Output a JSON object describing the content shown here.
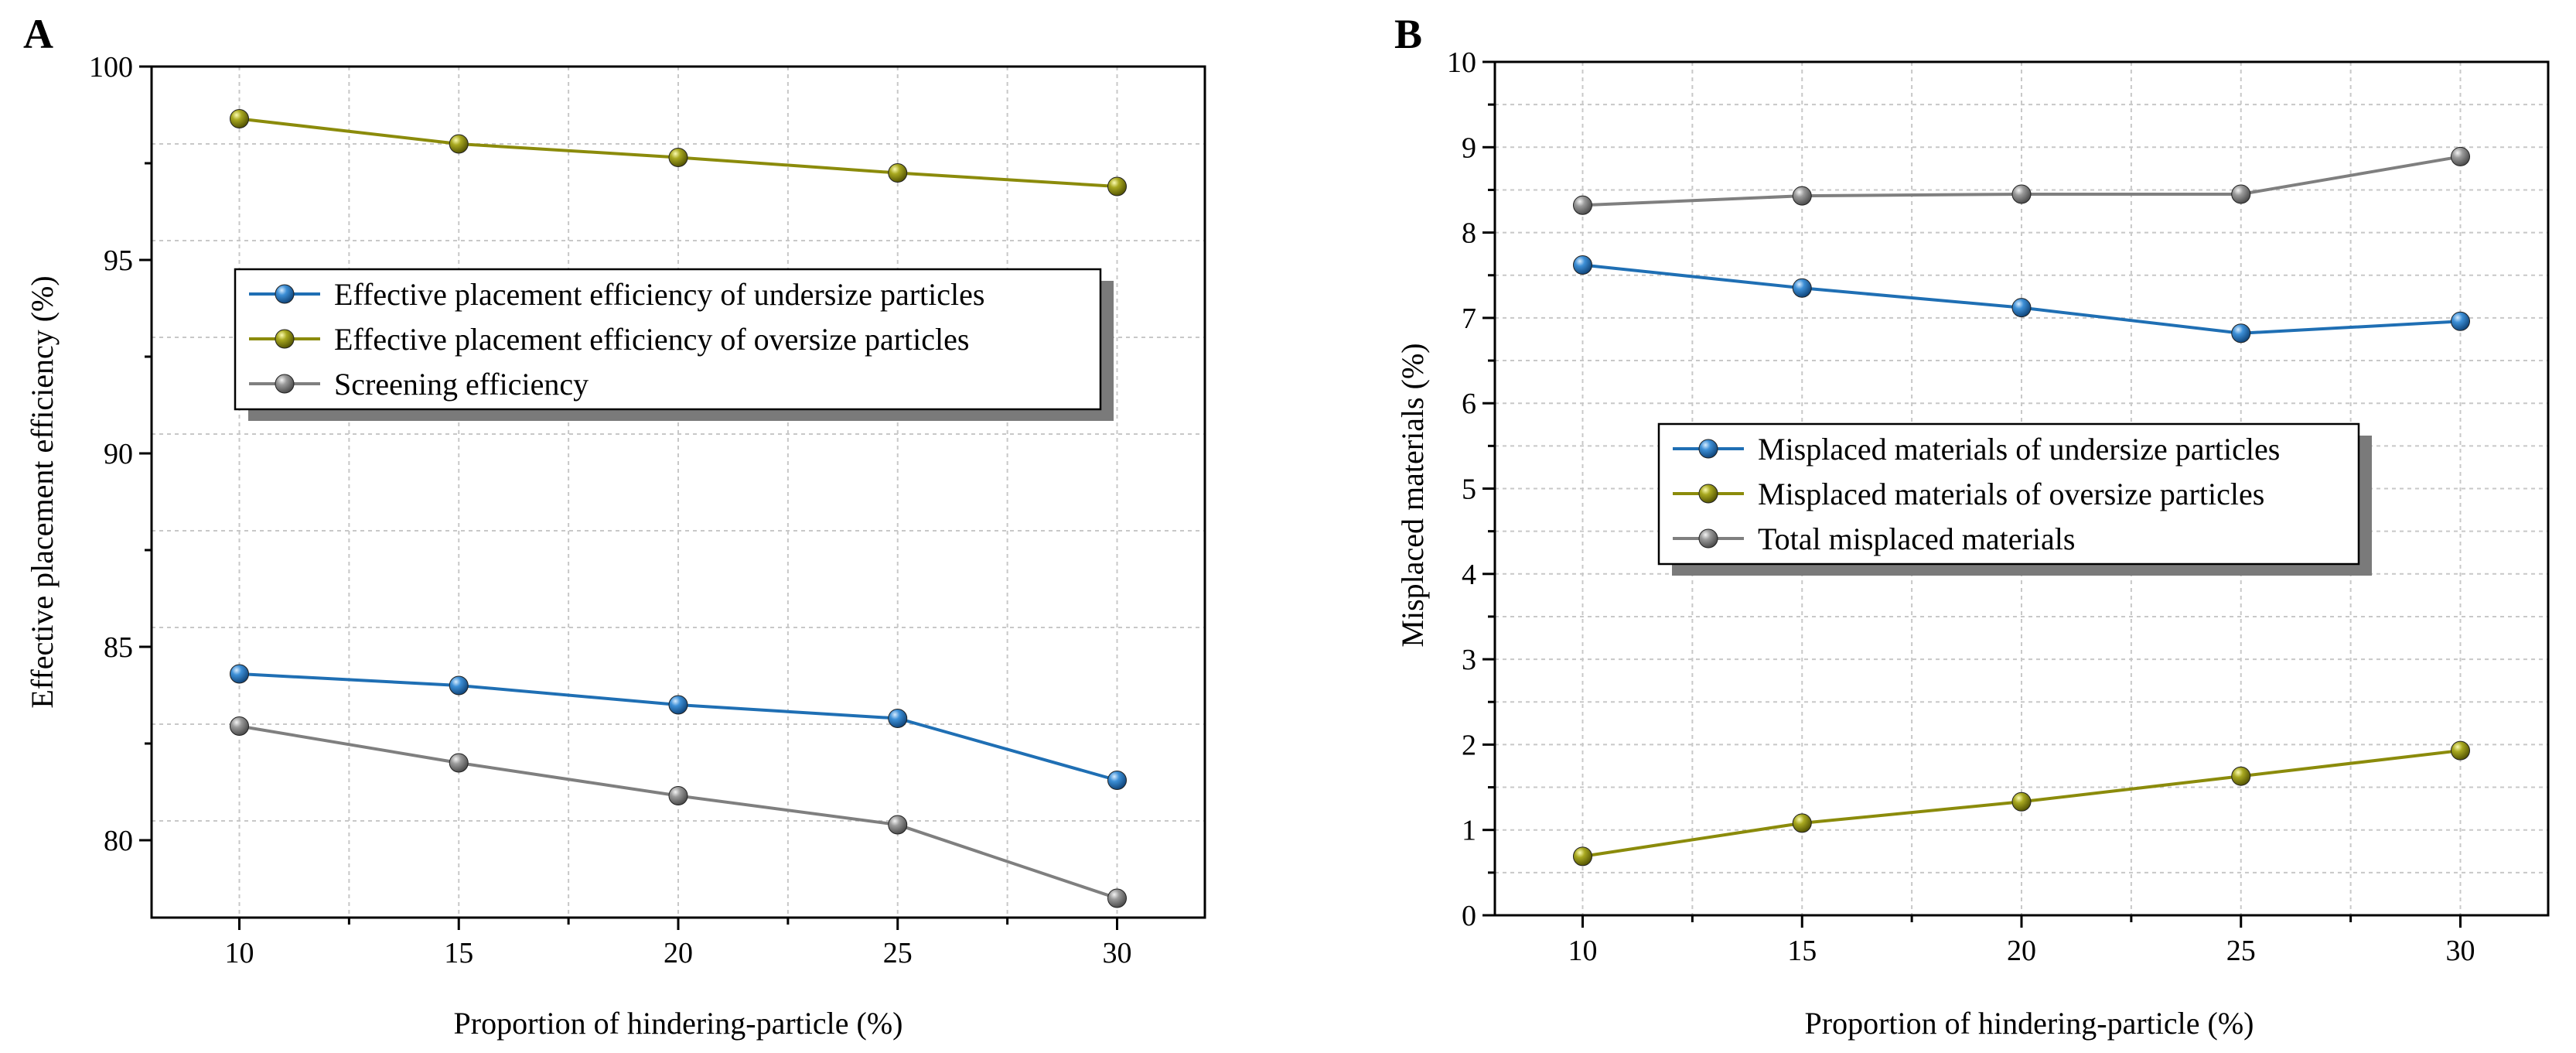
{
  "chart_data": [
    {
      "type": "line",
      "panel": "A",
      "xlabel": "Proportion of hindering-particle (%)",
      "ylabel": "Effective placement efficiency (%)",
      "xlim": [
        8,
        32
      ],
      "ylim": [
        78,
        100
      ],
      "xticks": [
        10,
        15,
        20,
        25,
        30
      ],
      "yticks": [
        80,
        85,
        90,
        95,
        100
      ],
      "grid": true,
      "legend_position": "upper-center",
      "x": [
        10,
        15,
        20,
        25,
        30
      ],
      "series": [
        {
          "name": "Effective placement efficiency of undersize particles",
          "color": "#1f6fb4",
          "values": [
            84.3,
            84.0,
            83.5,
            83.15,
            81.55
          ]
        },
        {
          "name": "Effective placement efficiency of oversize particles",
          "color": "#8b8b0b",
          "values": [
            98.65,
            98.0,
            97.65,
            97.25,
            96.9
          ]
        },
        {
          "name": "Screening efficiency",
          "color": "#7f7f7f",
          "values": [
            82.95,
            82.0,
            81.15,
            80.4,
            78.5
          ]
        }
      ]
    },
    {
      "type": "line",
      "panel": "B",
      "xlabel": "Proportion of hindering-particle (%)",
      "ylabel": "Misplaced materials (%)",
      "xlim": [
        8,
        32
      ],
      "ylim": [
        0,
        10
      ],
      "xticks": [
        10,
        15,
        20,
        25,
        30
      ],
      "yticks": [
        0,
        1,
        2,
        3,
        4,
        5,
        6,
        7,
        8,
        9,
        10
      ],
      "grid": true,
      "legend_position": "center",
      "x": [
        10,
        15,
        20,
        25,
        30
      ],
      "series": [
        {
          "name": "Misplaced materials of undersize particles",
          "color": "#1f6fb4",
          "values": [
            7.62,
            7.35,
            7.12,
            6.82,
            6.96
          ]
        },
        {
          "name": "Misplaced materials of oversize particles",
          "color": "#8b8b0b",
          "values": [
            0.69,
            1.08,
            1.33,
            1.63,
            1.93
          ]
        },
        {
          "name": "Total misplaced materials",
          "color": "#7f7f7f",
          "values": [
            8.32,
            8.43,
            8.45,
            8.45,
            8.89
          ]
        }
      ]
    }
  ]
}
